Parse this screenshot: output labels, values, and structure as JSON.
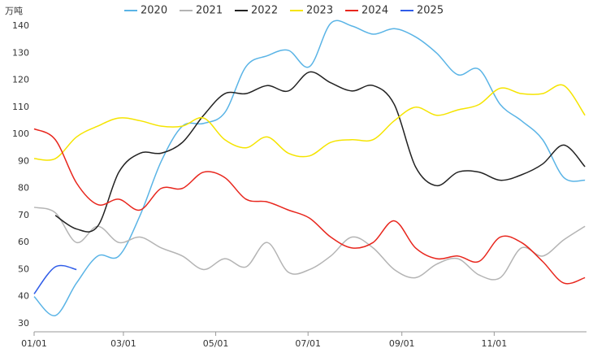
{
  "chart_data": {
    "type": "line",
    "y_label": "万吨",
    "x": [
      0,
      14,
      28,
      42,
      56,
      70,
      84,
      98,
      112,
      126,
      140,
      154,
      168,
      182,
      196,
      210,
      224,
      238,
      252,
      266,
      280,
      294,
      308,
      322,
      336,
      350,
      364
    ],
    "xlim": [
      0,
      365
    ],
    "xticks": [
      {
        "value": 0,
        "label": "01/01"
      },
      {
        "value": 59,
        "label": "03/01"
      },
      {
        "value": 120,
        "label": "05/01"
      },
      {
        "value": 181,
        "label": "07/01"
      },
      {
        "value": 243,
        "label": "09/01"
      },
      {
        "value": 304,
        "label": "11/01"
      }
    ],
    "ylim": [
      27,
      143
    ],
    "yticks": [
      30,
      40,
      50,
      60,
      70,
      80,
      90,
      100,
      110,
      120,
      130,
      140
    ],
    "grid": false,
    "legend": "top",
    "series": [
      {
        "name": "2020",
        "color": "#5ab4e6",
        "values": [
          40,
          33,
          45,
          55,
          55,
          70,
          90,
          103,
          104,
          108,
          125,
          129,
          131,
          125,
          141,
          140,
          137,
          139,
          136,
          130,
          122,
          124,
          111,
          105,
          98,
          84,
          83
        ]
      },
      {
        "name": "2021",
        "color": "#b4b4b4",
        "values": [
          73,
          71,
          60,
          66,
          60,
          62,
          58,
          55,
          50,
          54,
          51,
          60,
          49,
          50,
          55,
          62,
          58,
          50,
          47,
          52,
          54,
          48,
          47,
          58,
          55,
          61,
          66
        ]
      },
      {
        "name": "2022",
        "color": "#222222",
        "values": [
          null,
          70,
          65,
          66,
          86,
          93,
          93,
          97,
          107,
          115,
          115,
          118,
          116,
          123,
          119,
          116,
          118,
          111,
          88,
          81,
          86,
          86,
          83,
          85,
          89,
          96,
          88
        ]
      },
      {
        "name": "2023",
        "color": "#f5e400",
        "values": [
          91,
          91,
          99,
          103,
          106,
          105,
          103,
          103,
          106,
          98,
          95,
          99,
          93,
          92,
          97,
          98,
          98,
          105,
          110,
          107,
          109,
          111,
          117,
          115,
          115,
          118,
          107
        ]
      },
      {
        "name": "2024",
        "color": "#e8261d",
        "values": [
          102,
          98,
          82,
          74,
          76,
          72,
          80,
          80,
          86,
          84,
          76,
          75,
          72,
          69,
          62,
          58,
          60,
          68,
          58,
          54,
          55,
          53,
          62,
          60,
          53,
          45,
          47
        ]
      },
      {
        "name": "2025",
        "color": "#2f5ce8",
        "values": [
          41,
          51,
          50,
          null,
          null,
          null,
          null,
          null,
          null,
          null,
          null,
          null,
          null,
          null,
          null,
          null,
          null,
          null,
          null,
          null,
          null,
          null,
          null,
          null,
          null,
          null,
          null
        ]
      }
    ]
  }
}
